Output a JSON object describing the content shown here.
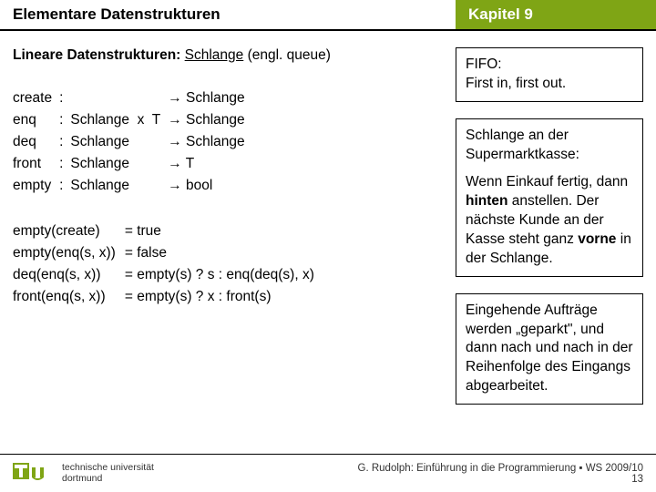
{
  "header": {
    "left": "Elementare Datenstrukturen",
    "right": "Kapitel 9"
  },
  "colors": {
    "green": "#7fa515",
    "black": "#000000",
    "white": "#ffffff"
  },
  "title": {
    "bold": "Lineare Datenstrukturen:",
    "underline": "Schlange",
    "rest": " (engl. queue)"
  },
  "signatures": [
    {
      "name": "create",
      "sig": "",
      "result": "→ Schlange"
    },
    {
      "name": "enq",
      "sig": "Schlange  x  T",
      "result": "→ Schlange"
    },
    {
      "name": "deq",
      "sig": "Schlange",
      "result": "→ Schlange"
    },
    {
      "name": "front",
      "sig": "Schlange",
      "result": "→ T"
    },
    {
      "name": "empty",
      "sig": "Schlange",
      "result": "→ bool"
    }
  ],
  "axioms": [
    {
      "lhs": "empty(create)",
      "rhs": "= true"
    },
    {
      "lhs": "empty(enq(s, x))",
      "rhs": "= false"
    },
    {
      "lhs": "deq(enq(s, x))",
      "rhs": "= empty(s) ? s : enq(deq(s), x)"
    },
    {
      "lhs": "front(enq(s, x))",
      "rhs": "= empty(s) ? x : front(s)"
    }
  ],
  "boxes": [
    {
      "text": "FIFO:\nFirst in, first out."
    },
    {
      "text": "Schlange an der Supermarktkasse:\n\nWenn Einkauf fertig, dann hinten anstellen. Der nächste Kunde an der Kasse steht ganz vorne in der Schlange."
    },
    {
      "text": "Eingehende Aufträge werden „geparkt\", und dann nach und nach in der Reihenfolge des Eingangs abgearbeitet."
    }
  ],
  "footer": {
    "uni_line1": "technische universität",
    "uni_line2": "dortmund",
    "credit": "G. Rudolph: Einführung in die Programmierung ▪ WS 2009/10",
    "page": "13"
  }
}
